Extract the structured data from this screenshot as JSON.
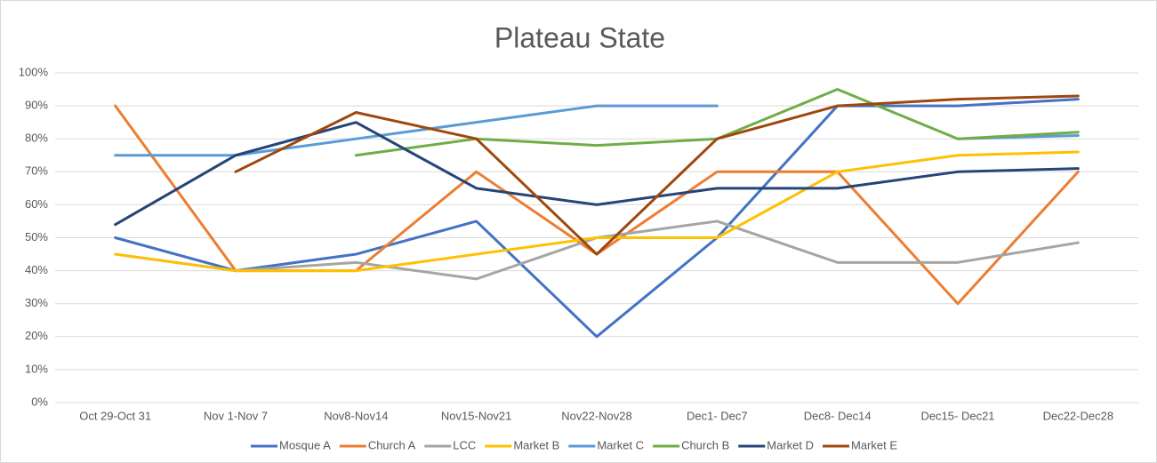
{
  "chart_data": {
    "type": "line",
    "title": "Plateau State",
    "categories": [
      "Oct 29-Oct 31",
      "Nov 1-Nov 7",
      "Nov8-Nov14",
      "Nov15-Nov21",
      "Nov22-Nov28",
      "Dec1- Dec7",
      "Dec8- Dec14",
      "Dec15- Dec21",
      "Dec22-Dec28"
    ],
    "series": [
      {
        "name": "Mosque A",
        "color": "#4472c4",
        "values": [
          50,
          40,
          45,
          55,
          20,
          50,
          90,
          90,
          92
        ]
      },
      {
        "name": "Church A",
        "color": "#ed7d31",
        "values": [
          90,
          40,
          40,
          70,
          45,
          70,
          70,
          30,
          70
        ]
      },
      {
        "name": "LCC",
        "color": "#a5a5a5",
        "values": [
          45,
          40,
          42.5,
          37.5,
          50,
          55,
          42.5,
          42.5,
          48.5
        ]
      },
      {
        "name": "Market B",
        "color": "#ffc000",
        "values": [
          45,
          40,
          40,
          45,
          50,
          50,
          70,
          75,
          76
        ]
      },
      {
        "name": "Market C",
        "color": "#5b9bd5",
        "values": [
          75,
          75,
          80,
          85,
          90,
          90,
          null,
          80,
          81
        ]
      },
      {
        "name": "Church B",
        "color": "#70ad47",
        "values": [
          null,
          null,
          75,
          80,
          78,
          80,
          95,
          80,
          82
        ]
      },
      {
        "name": "Market D",
        "color": "#264478",
        "values": [
          54,
          75,
          85,
          65,
          60,
          65,
          65,
          70,
          71
        ]
      },
      {
        "name": "Market E",
        "color": "#9e480e",
        "values": [
          null,
          70,
          88,
          80,
          45,
          80,
          90,
          92,
          93
        ]
      }
    ],
    "ylim": [
      0,
      100
    ],
    "yticks": [
      {
        "value": 0,
        "label": "0%"
      },
      {
        "value": 10,
        "label": "10%"
      },
      {
        "value": 20,
        "label": "20%"
      },
      {
        "value": 30,
        "label": "30%"
      },
      {
        "value": 40,
        "label": "40%"
      },
      {
        "value": 50,
        "label": "50%"
      },
      {
        "value": 60,
        "label": "60%"
      },
      {
        "value": 70,
        "label": "70%"
      },
      {
        "value": 80,
        "label": "80%"
      },
      {
        "value": 90,
        "label": "90%"
      },
      {
        "value": 100,
        "label": "100%"
      }
    ],
    "grid": true,
    "legend": "bottom"
  }
}
